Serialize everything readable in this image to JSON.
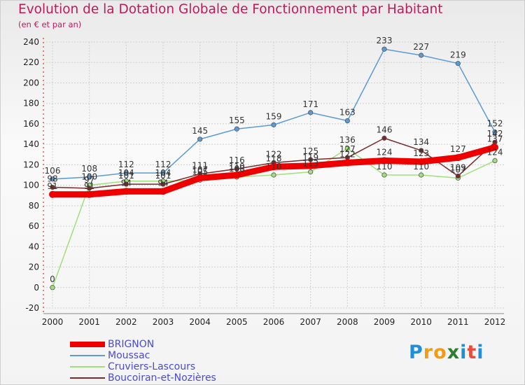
{
  "title": "Evolution de la Dotation Globale de Fonctionnement par Habitant",
  "subtitle": "(en € et par an)",
  "watermark": {
    "letters": [
      "P",
      "r",
      "o",
      "x",
      "i",
      "t",
      "i"
    ],
    "colors": [
      "#1e90d8",
      "#f39c12",
      "#f39c12",
      "#2e7d32",
      "#1e90d8",
      "#e74c3c",
      "#1e90d8"
    ]
  },
  "chart_data": {
    "type": "line",
    "title": "Evolution de la Dotation Globale de Fonctionnement par Habitant",
    "subtitle": "(en € et par an)",
    "categories": [
      "2000",
      "2001",
      "2002",
      "2003",
      "2004",
      "2005",
      "2006",
      "2007",
      "2008",
      "2009",
      "2010",
      "2011",
      "2012"
    ],
    "ylim": [
      -20,
      240
    ],
    "yticks": [
      -20,
      0,
      20,
      40,
      60,
      80,
      100,
      120,
      140,
      160,
      180,
      200,
      220,
      240
    ],
    "grid": true,
    "legend_position": "bottom-left",
    "series": [
      {
        "name": "BRIGNON",
        "color": "#ee0000",
        "width": 9,
        "values": [
          91,
          91,
          94,
          94,
          107,
          110,
          118,
          119,
          122,
          124,
          123,
          127,
          137
        ],
        "labels": [
          "91",
          "91",
          "94",
          "94",
          "107",
          "110",
          "118",
          "119",
          "122",
          "124",
          "123",
          "127",
          "137"
        ]
      },
      {
        "name": "Moussac",
        "color": "#5b9bd5",
        "width": 1.5,
        "values": [
          106,
          108,
          112,
          112,
          145,
          155,
          159,
          171,
          163,
          233,
          227,
          219,
          152
        ],
        "labels": [
          "106",
          "108",
          "112",
          "112",
          "145",
          "155",
          "159",
          "171",
          "163",
          "233",
          "227",
          "219",
          "152"
        ]
      },
      {
        "name": "Cruviers-Lascours",
        "color": "#9fe07a",
        "width": 1.5,
        "values": [
          0,
          100,
          104,
          104,
          105,
          108,
          110,
          113,
          136,
          110,
          110,
          107,
          124
        ],
        "labels": [
          "0",
          "100",
          "104",
          "104",
          "105",
          "108",
          "110",
          "113",
          "136",
          "110",
          "110",
          "107",
          "124"
        ]
      },
      {
        "name": "Boucoiran-et-Nozières",
        "color": "#7b2a2a",
        "width": 1.5,
        "values": [
          98,
          97,
          101,
          101,
          111,
          116,
          122,
          125,
          127,
          146,
          134,
          109,
          142
        ],
        "labels": [
          "98",
          "97",
          "101",
          "101",
          "111",
          "116",
          "122",
          "125",
          "127",
          "146",
          "134",
          "109",
          "142"
        ]
      }
    ]
  }
}
